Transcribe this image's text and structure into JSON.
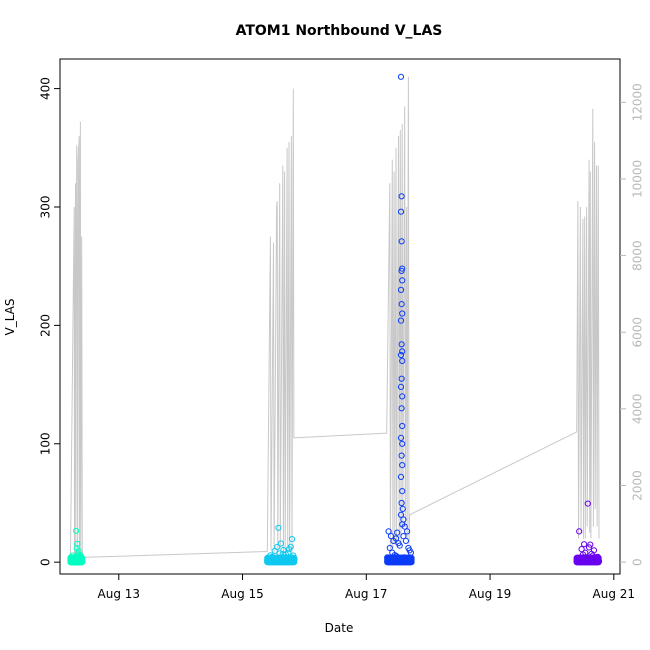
{
  "chart_data": {
    "type": "scatter",
    "title": "ATOM1 Northbound V_LAS",
    "xlabel": "Date",
    "ylabel": "V_LAS",
    "xlim": [
      12.05,
      21.1
    ],
    "ylim": [
      -10,
      425
    ],
    "y2lim": [
      -310,
      13130
    ],
    "x_ticks": [
      13,
      15,
      17,
      19,
      21
    ],
    "x_tick_labels": [
      "Aug 13",
      "Aug 15",
      "Aug 17",
      "Aug 19",
      "Aug 21"
    ],
    "y_ticks": [
      0,
      100,
      200,
      300,
      400
    ],
    "y2_ticks": [
      0,
      2000,
      4000,
      6000,
      8000,
      10000,
      12000
    ],
    "colors": {
      "point_colors": [
        "#00ffc0",
        "#10c8f0",
        "#0c3cf8",
        "#6a00f0"
      ],
      "gray_line": "#c8c8c8",
      "right_axis": "#b8b8b8"
    },
    "series": [
      {
        "day": "Aug 12",
        "color_index": 0,
        "points": [
          [
            12.22,
            1.5
          ],
          [
            12.24,
            0.8
          ],
          [
            12.26,
            2.2
          ],
          [
            12.27,
            0.4
          ],
          [
            12.29,
            3.1
          ],
          [
            12.3,
            1.2
          ],
          [
            12.31,
            26.5
          ],
          [
            12.32,
            4.5
          ],
          [
            12.33,
            15.5
          ],
          [
            12.34,
            2.8
          ],
          [
            12.35,
            9.5
          ],
          [
            12.36,
            6.0
          ],
          [
            12.37,
            3.5
          ],
          [
            12.38,
            1.9
          ],
          [
            12.39,
            4.8
          ],
          [
            12.4,
            2.6
          ],
          [
            12.41,
            1.1
          ],
          [
            12.23,
            4.2
          ],
          [
            12.25,
            5.5
          ],
          [
            12.28,
            0.2
          ],
          [
            12.32,
            11.8
          ],
          [
            12.34,
            7.2
          ],
          [
            12.36,
            0.6
          ],
          [
            12.38,
            5.9
          ]
        ],
        "gray_points": [
          [
            12.22,
            6.5
          ],
          [
            12.28,
            300
          ],
          [
            12.285,
            6.5
          ],
          [
            12.3,
            320
          ],
          [
            12.305,
            5
          ],
          [
            12.32,
            352
          ],
          [
            12.33,
            340
          ],
          [
            12.335,
            6
          ],
          [
            12.35,
            350
          ],
          [
            12.36,
            360
          ],
          [
            12.365,
            5
          ],
          [
            12.38,
            372
          ],
          [
            12.385,
            4
          ],
          [
            12.4,
            275
          ],
          [
            12.41,
            4
          ]
        ]
      },
      {
        "day": "Aug 15",
        "color_index": 1,
        "points": [
          [
            15.4,
            1.2
          ],
          [
            15.43,
            2.5
          ],
          [
            15.46,
            0.6
          ],
          [
            15.48,
            4.5
          ],
          [
            15.5,
            2.0
          ],
          [
            15.52,
            9.5
          ],
          [
            15.54,
            3.0
          ],
          [
            15.56,
            12.8
          ],
          [
            15.58,
            29.0
          ],
          [
            15.6,
            7.5
          ],
          [
            15.62,
            15.8
          ],
          [
            15.64,
            4.2
          ],
          [
            15.66,
            10.2
          ],
          [
            15.68,
            3.4
          ],
          [
            15.7,
            6.5
          ],
          [
            15.72,
            2.1
          ],
          [
            15.74,
            8.0
          ],
          [
            15.76,
            1.8
          ],
          [
            15.78,
            13.0
          ],
          [
            15.8,
            19.5
          ],
          [
            15.82,
            5.5
          ],
          [
            15.84,
            2.4
          ],
          [
            15.45,
            5.8
          ],
          [
            15.55,
            0.4
          ],
          [
            15.65,
            7.0
          ],
          [
            15.75,
            11.0
          ]
        ],
        "gray_points": [
          [
            15.4,
            9
          ],
          [
            15.45,
            275
          ],
          [
            15.46,
            10
          ],
          [
            15.5,
            270
          ],
          [
            15.51,
            8
          ],
          [
            15.55,
            300
          ],
          [
            15.56,
            305
          ],
          [
            15.57,
            10
          ],
          [
            15.6,
            320
          ],
          [
            15.61,
            12
          ],
          [
            15.65,
            335
          ],
          [
            15.66,
            8
          ],
          [
            15.68,
            330
          ],
          [
            15.69,
            10
          ],
          [
            15.72,
            350
          ],
          [
            15.73,
            12
          ],
          [
            15.75,
            355
          ],
          [
            15.76,
            10
          ],
          [
            15.79,
            360
          ],
          [
            15.8,
            8
          ],
          [
            15.82,
            400
          ],
          [
            15.83,
            105
          ],
          [
            17.33,
            109
          ]
        ]
      },
      {
        "day": "Aug 17",
        "color_index": 2,
        "points": [
          [
            17.56,
            410
          ],
          [
            17.57,
            309
          ],
          [
            17.56,
            296
          ],
          [
            17.57,
            271
          ],
          [
            17.58,
            248
          ],
          [
            17.57,
            246
          ],
          [
            17.58,
            238
          ],
          [
            17.56,
            230
          ],
          [
            17.57,
            218
          ],
          [
            17.58,
            210
          ],
          [
            17.56,
            204
          ],
          [
            17.57,
            184
          ],
          [
            17.58,
            178
          ],
          [
            17.56,
            175
          ],
          [
            17.58,
            170
          ],
          [
            17.57,
            155
          ],
          [
            17.56,
            148
          ],
          [
            17.58,
            140
          ],
          [
            17.57,
            130
          ],
          [
            17.58,
            115
          ],
          [
            17.56,
            105
          ],
          [
            17.58,
            100
          ],
          [
            17.57,
            90
          ],
          [
            17.58,
            82
          ],
          [
            17.56,
            72
          ],
          [
            17.58,
            60
          ],
          [
            17.57,
            50
          ],
          [
            17.59,
            45
          ],
          [
            17.56,
            40
          ],
          [
            17.6,
            36
          ],
          [
            17.58,
            32
          ],
          [
            17.62,
            30
          ],
          [
            17.66,
            26
          ],
          [
            17.36,
            26
          ],
          [
            17.4,
            22
          ],
          [
            17.44,
            18
          ],
          [
            17.48,
            20
          ],
          [
            17.5,
            25
          ],
          [
            17.52,
            16
          ],
          [
            17.54,
            14
          ],
          [
            17.6,
            22
          ],
          [
            17.64,
            18
          ],
          [
            17.68,
            12
          ],
          [
            17.7,
            10
          ],
          [
            17.72,
            8
          ],
          [
            17.38,
            12
          ],
          [
            17.42,
            8
          ],
          [
            17.46,
            6
          ],
          [
            17.34,
            4
          ],
          [
            17.37,
            2
          ],
          [
            17.41,
            1
          ],
          [
            17.45,
            3
          ],
          [
            17.49,
            5
          ],
          [
            17.53,
            2
          ],
          [
            17.61,
            4
          ],
          [
            17.65,
            1
          ],
          [
            17.69,
            3
          ],
          [
            17.73,
            2
          ]
        ],
        "gray_points": [
          [
            17.33,
            109
          ],
          [
            17.38,
            320
          ],
          [
            17.39,
            10
          ],
          [
            17.42,
            340
          ],
          [
            17.43,
            12
          ],
          [
            17.45,
            330
          ],
          [
            17.46,
            15
          ],
          [
            17.48,
            350
          ],
          [
            17.49,
            14
          ],
          [
            17.52,
            360
          ],
          [
            17.53,
            20
          ],
          [
            17.55,
            365
          ],
          [
            17.56,
            18
          ],
          [
            17.58,
            370
          ],
          [
            17.59,
            30
          ],
          [
            17.62,
            385
          ],
          [
            17.63,
            30
          ],
          [
            17.65,
            300
          ],
          [
            17.66,
            20
          ],
          [
            17.68,
            410
          ],
          [
            17.69,
            15
          ],
          [
            17.7,
            40
          ]
        ]
      },
      {
        "day": "Aug 20",
        "color_index": 3,
        "points": [
          [
            20.4,
            1.5
          ],
          [
            20.44,
            26.0
          ],
          [
            20.46,
            3.5
          ],
          [
            20.48,
            11.0
          ],
          [
            20.5,
            6.5
          ],
          [
            20.52,
            15.2
          ],
          [
            20.54,
            8.0
          ],
          [
            20.56,
            4.0
          ],
          [
            20.58,
            49.5
          ],
          [
            20.6,
            12.5
          ],
          [
            20.62,
            14.8
          ],
          [
            20.64,
            7.0
          ],
          [
            20.66,
            5.5
          ],
          [
            20.68,
            10.0
          ],
          [
            20.7,
            3.0
          ],
          [
            20.72,
            1.8
          ],
          [
            20.74,
            4.5
          ],
          [
            20.76,
            0.8
          ],
          [
            20.45,
            0.5
          ],
          [
            20.55,
            2.0
          ],
          [
            20.65,
            1.2
          ],
          [
            20.75,
            2.8
          ]
        ],
        "gray_points": [
          [
            20.4,
            110
          ],
          [
            20.42,
            305
          ],
          [
            20.43,
            20
          ],
          [
            20.46,
            300
          ],
          [
            20.47,
            25
          ],
          [
            20.5,
            290
          ],
          [
            20.51,
            20
          ],
          [
            20.53,
            292
          ],
          [
            20.54,
            20
          ],
          [
            20.56,
            300
          ],
          [
            20.57,
            30
          ],
          [
            20.6,
            340
          ],
          [
            20.61,
            25
          ],
          [
            20.62,
            330
          ],
          [
            20.63,
            20
          ],
          [
            20.66,
            383
          ],
          [
            20.67,
            30
          ],
          [
            20.69,
            355
          ],
          [
            20.7,
            45
          ],
          [
            20.72,
            335
          ],
          [
            20.73,
            30
          ],
          [
            20.75,
            335
          ],
          [
            20.76,
            20
          ]
        ]
      }
    ]
  }
}
